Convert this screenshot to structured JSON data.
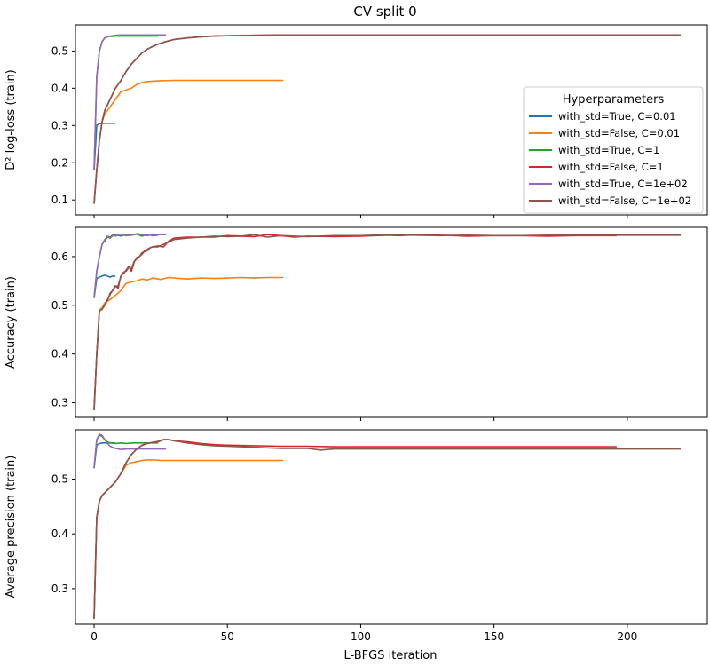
{
  "figure": {
    "title": "CV split 0",
    "xlabel": "L-BFGS iteration",
    "legend_title": "Hyperparameters"
  },
  "colors": {
    "with_std=True, C=0.01": "#1f77b4",
    "with_std=False, C=0.01": "#ff7f0e",
    "with_std=True, C=1": "#2ca02c",
    "with_std=False, C=1": "#d62728",
    "with_std=True, C=1e+02": "#9467bd",
    "with_std=False, C=1e+02": "#8c564b"
  },
  "chart_data": [
    {
      "type": "line",
      "title": "CV split 0",
      "xlabel": "",
      "ylabel": "D² log-loss (train)",
      "xlim": [
        -7,
        230
      ],
      "ylim": [
        0.06,
        0.57
      ],
      "xticks": [
        0,
        50,
        100,
        150,
        200
      ],
      "xtick_labels": [],
      "yticks": [
        0.1,
        0.2,
        0.3,
        0.4,
        0.5
      ],
      "ytick_labels": [
        "0.1",
        "0.2",
        "0.3",
        "0.4",
        "0.5"
      ],
      "legend": "right",
      "series": [
        {
          "name": "with_std=True, C=0.01",
          "x": [
            0,
            1,
            2,
            3,
            4,
            5,
            6,
            7,
            8
          ],
          "y": [
            0.18,
            0.3,
            0.305,
            0.306,
            0.306,
            0.306,
            0.306,
            0.306,
            0.306
          ]
        },
        {
          "name": "with_std=False, C=0.01",
          "x": [
            0,
            1,
            2,
            3,
            4,
            6,
            8,
            10,
            12,
            14,
            16,
            18,
            20,
            22,
            25,
            30,
            40,
            50,
            60,
            71
          ],
          "y": [
            0.09,
            0.18,
            0.26,
            0.31,
            0.33,
            0.35,
            0.37,
            0.39,
            0.395,
            0.4,
            0.41,
            0.415,
            0.418,
            0.419,
            0.42,
            0.421,
            0.421,
            0.421,
            0.421,
            0.421
          ]
        },
        {
          "name": "with_std=True, C=1",
          "x": [
            0,
            1,
            2,
            3,
            4,
            5,
            6,
            8,
            10,
            12,
            15,
            18,
            21,
            24
          ],
          "y": [
            0.18,
            0.43,
            0.5,
            0.525,
            0.535,
            0.538,
            0.539,
            0.54,
            0.54,
            0.54,
            0.54,
            0.54,
            0.54,
            0.54
          ]
        },
        {
          "name": "with_std=False, C=1",
          "x": [
            0,
            1,
            2,
            3,
            4,
            6,
            8,
            10,
            12,
            14,
            16,
            18,
            20,
            22,
            24,
            26,
            28,
            30,
            35,
            40,
            45,
            50,
            60,
            70,
            80,
            100,
            120,
            150,
            196
          ],
          "y": [
            0.09,
            0.18,
            0.26,
            0.31,
            0.34,
            0.37,
            0.4,
            0.42,
            0.445,
            0.465,
            0.48,
            0.495,
            0.505,
            0.512,
            0.518,
            0.523,
            0.527,
            0.531,
            0.535,
            0.538,
            0.54,
            0.541,
            0.542,
            0.543,
            0.543,
            0.543,
            0.543,
            0.543,
            0.543
          ]
        },
        {
          "name": "with_std=True, C=1e+02",
          "x": [
            0,
            1,
            2,
            3,
            4,
            5,
            6,
            8,
            10,
            12,
            15,
            18,
            21,
            24,
            27
          ],
          "y": [
            0.18,
            0.43,
            0.5,
            0.525,
            0.535,
            0.538,
            0.54,
            0.542,
            0.543,
            0.543,
            0.543,
            0.543,
            0.543,
            0.543,
            0.543
          ]
        },
        {
          "name": "with_std=False, C=1e+02",
          "x": [
            0,
            1,
            2,
            3,
            4,
            6,
            8,
            10,
            12,
            14,
            16,
            18,
            20,
            22,
            24,
            26,
            28,
            30,
            35,
            40,
            45,
            50,
            60,
            70,
            80,
            100,
            120,
            150,
            180,
            200,
            220
          ],
          "y": [
            0.09,
            0.18,
            0.26,
            0.31,
            0.34,
            0.37,
            0.4,
            0.42,
            0.445,
            0.465,
            0.48,
            0.495,
            0.505,
            0.512,
            0.518,
            0.523,
            0.527,
            0.531,
            0.535,
            0.538,
            0.54,
            0.541,
            0.542,
            0.543,
            0.543,
            0.543,
            0.543,
            0.543,
            0.543,
            0.543,
            0.543
          ]
        }
      ]
    },
    {
      "type": "line",
      "xlabel": "",
      "ylabel": "Accuracy (train)",
      "xlim": [
        -7,
        230
      ],
      "ylim": [
        0.27,
        0.66
      ],
      "xticks": [
        0,
        50,
        100,
        150,
        200
      ],
      "xtick_labels": [],
      "yticks": [
        0.3,
        0.4,
        0.5,
        0.6
      ],
      "ytick_labels": [
        "0.3",
        "0.4",
        "0.5",
        "0.6"
      ],
      "series": [
        {
          "name": "with_std=True, C=0.01",
          "x": [
            0,
            1,
            2,
            3,
            4,
            5,
            6,
            7,
            8
          ],
          "y": [
            0.515,
            0.555,
            0.558,
            0.56,
            0.562,
            0.56,
            0.558,
            0.56,
            0.56
          ]
        },
        {
          "name": "with_std=False, C=0.01",
          "x": [
            0,
            1,
            2,
            3,
            4,
            6,
            8,
            10,
            12,
            14,
            16,
            18,
            20,
            22,
            25,
            28,
            30,
            35,
            40,
            45,
            50,
            55,
            60,
            65,
            71
          ],
          "y": [
            0.285,
            0.4,
            0.49,
            0.495,
            0.505,
            0.512,
            0.52,
            0.53,
            0.545,
            0.548,
            0.55,
            0.554,
            0.552,
            0.556,
            0.553,
            0.557,
            0.556,
            0.554,
            0.556,
            0.555,
            0.556,
            0.557,
            0.556,
            0.557,
            0.557
          ]
        },
        {
          "name": "with_std=True, C=1",
          "x": [
            0,
            1,
            2,
            3,
            4,
            5,
            6,
            7,
            8,
            10,
            12,
            14,
            16,
            18,
            20,
            22,
            24
          ],
          "y": [
            0.515,
            0.57,
            0.6,
            0.625,
            0.632,
            0.64,
            0.638,
            0.643,
            0.645,
            0.642,
            0.645,
            0.644,
            0.646,
            0.642,
            0.645,
            0.643,
            0.644
          ]
        },
        {
          "name": "with_std=False, C=1",
          "x": [
            0,
            1,
            2,
            3,
            4,
            5,
            6,
            7,
            8,
            9,
            10,
            11,
            12,
            13,
            14,
            15,
            16,
            17,
            18,
            19,
            20,
            21,
            22,
            24,
            26,
            28,
            30,
            35,
            40,
            45,
            50,
            55,
            60,
            65,
            70,
            75,
            80,
            90,
            100,
            110,
            115,
            120,
            130,
            140,
            150,
            160,
            170,
            180,
            196
          ],
          "y": [
            0.285,
            0.4,
            0.488,
            0.492,
            0.5,
            0.51,
            0.525,
            0.53,
            0.54,
            0.535,
            0.56,
            0.565,
            0.572,
            0.58,
            0.57,
            0.588,
            0.598,
            0.6,
            0.605,
            0.612,
            0.615,
            0.618,
            0.62,
            0.622,
            0.62,
            0.632,
            0.638,
            0.64,
            0.64,
            0.64,
            0.643,
            0.642,
            0.641,
            0.645,
            0.643,
            0.64,
            0.642,
            0.641,
            0.642,
            0.644,
            0.643,
            0.645,
            0.644,
            0.642,
            0.643,
            0.643,
            0.642,
            0.643,
            0.643
          ]
        },
        {
          "name": "with_std=True, C=1e+02",
          "x": [
            0,
            1,
            2,
            3,
            4,
            5,
            6,
            7,
            8,
            10,
            12,
            14,
            16,
            18,
            20,
            22,
            24,
            27
          ],
          "y": [
            0.515,
            0.57,
            0.6,
            0.625,
            0.635,
            0.642,
            0.64,
            0.645,
            0.642,
            0.646,
            0.643,
            0.644,
            0.647,
            0.645,
            0.643,
            0.646,
            0.645,
            0.645
          ]
        },
        {
          "name": "with_std=False, C=1e+02",
          "x": [
            0,
            1,
            2,
            3,
            4,
            5,
            6,
            7,
            8,
            9,
            10,
            11,
            12,
            13,
            14,
            15,
            16,
            17,
            18,
            19,
            20,
            21,
            22,
            24,
            26,
            28,
            30,
            35,
            40,
            45,
            50,
            55,
            60,
            65,
            70,
            75,
            80,
            90,
            100,
            110,
            115,
            120,
            130,
            140,
            150,
            160,
            170,
            180,
            200,
            220
          ],
          "y": [
            0.285,
            0.4,
            0.488,
            0.492,
            0.5,
            0.512,
            0.522,
            0.532,
            0.538,
            0.54,
            0.558,
            0.568,
            0.57,
            0.578,
            0.575,
            0.59,
            0.595,
            0.6,
            0.608,
            0.61,
            0.612,
            0.618,
            0.62,
            0.62,
            0.625,
            0.63,
            0.635,
            0.638,
            0.64,
            0.642,
            0.641,
            0.642,
            0.645,
            0.64,
            0.643,
            0.642,
            0.641,
            0.643,
            0.643,
            0.645,
            0.644,
            0.644,
            0.643,
            0.644,
            0.643,
            0.643,
            0.644,
            0.644,
            0.644,
            0.644
          ]
        }
      ]
    },
    {
      "type": "line",
      "xlabel": "L-BFGS iteration",
      "ylabel": "Average precision (train)",
      "xlim": [
        -7,
        230
      ],
      "ylim": [
        0.235,
        0.59
      ],
      "xticks": [
        0,
        50,
        100,
        150,
        200
      ],
      "xtick_labels": [
        "0",
        "50",
        "100",
        "150",
        "200"
      ],
      "yticks": [
        0.3,
        0.4,
        0.5
      ],
      "ytick_labels": [
        "0.3",
        "0.4",
        "0.5"
      ],
      "series": [
        {
          "name": "with_std=True, C=0.01",
          "x": [
            0,
            1,
            2,
            3,
            4,
            5,
            6,
            7,
            8
          ],
          "y": [
            0.52,
            0.562,
            0.565,
            0.566,
            0.566,
            0.566,
            0.566,
            0.566,
            0.566
          ]
        },
        {
          "name": "with_std=False, C=0.01",
          "x": [
            0,
            1,
            2,
            3,
            4,
            6,
            8,
            10,
            12,
            14,
            16,
            18,
            20,
            22,
            25,
            30,
            40,
            50,
            60,
            71
          ],
          "y": [
            0.245,
            0.43,
            0.46,
            0.47,
            0.475,
            0.485,
            0.495,
            0.51,
            0.525,
            0.53,
            0.532,
            0.534,
            0.535,
            0.535,
            0.534,
            0.534,
            0.534,
            0.534,
            0.534,
            0.534
          ]
        },
        {
          "name": "with_std=True, C=1",
          "x": [
            0,
            1,
            2,
            3,
            4,
            5,
            6,
            8,
            10,
            12,
            15,
            18,
            21,
            24
          ],
          "y": [
            0.52,
            0.572,
            0.58,
            0.578,
            0.572,
            0.568,
            0.566,
            0.565,
            0.566,
            0.565,
            0.566,
            0.566,
            0.566,
            0.566
          ]
        },
        {
          "name": "with_std=False, C=1",
          "x": [
            0,
            1,
            2,
            3,
            4,
            6,
            8,
            10,
            12,
            14,
            16,
            18,
            20,
            22,
            24,
            26,
            28,
            30,
            35,
            40,
            45,
            50,
            60,
            70,
            80,
            90,
            100,
            120,
            150,
            196
          ],
          "y": [
            0.245,
            0.43,
            0.46,
            0.47,
            0.475,
            0.485,
            0.495,
            0.51,
            0.53,
            0.545,
            0.555,
            0.562,
            0.565,
            0.567,
            0.568,
            0.572,
            0.572,
            0.57,
            0.568,
            0.565,
            0.563,
            0.562,
            0.561,
            0.56,
            0.56,
            0.559,
            0.559,
            0.559,
            0.559,
            0.559
          ]
        },
        {
          "name": "with_std=True, C=1e+02",
          "x": [
            0,
            1,
            2,
            3,
            4,
            5,
            6,
            8,
            10,
            12,
            15,
            18,
            21,
            24,
            27
          ],
          "y": [
            0.52,
            0.572,
            0.582,
            0.58,
            0.572,
            0.565,
            0.56,
            0.556,
            0.554,
            0.555,
            0.555,
            0.555,
            0.555,
            0.555,
            0.555
          ]
        },
        {
          "name": "with_std=False, C=1e+02",
          "x": [
            0,
            1,
            2,
            3,
            4,
            6,
            8,
            10,
            12,
            14,
            16,
            18,
            20,
            22,
            24,
            26,
            28,
            30,
            35,
            40,
            45,
            50,
            60,
            70,
            80,
            85,
            90,
            100,
            120,
            150,
            180,
            200,
            220
          ],
          "y": [
            0.245,
            0.43,
            0.46,
            0.47,
            0.475,
            0.485,
            0.495,
            0.51,
            0.53,
            0.545,
            0.555,
            0.562,
            0.565,
            0.567,
            0.569,
            0.572,
            0.572,
            0.57,
            0.566,
            0.563,
            0.561,
            0.56,
            0.558,
            0.556,
            0.556,
            0.553,
            0.555,
            0.555,
            0.555,
            0.555,
            0.555,
            0.555,
            0.555
          ]
        }
      ]
    }
  ]
}
